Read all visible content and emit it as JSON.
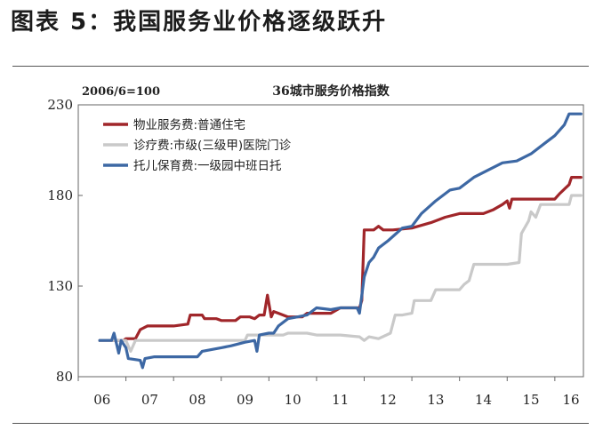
{
  "figure": {
    "title": "图表 5：我国服务业价格逐级跃升"
  },
  "chart_data": {
    "type": "line",
    "title": "36城市服务价格指数",
    "base_note": "2006/6=100",
    "xlabel": "",
    "ylabel": "",
    "xlim": [
      2006,
      2016.6
    ],
    "ylim": [
      80,
      230
    ],
    "y_ticks": [
      80,
      130,
      180,
      230
    ],
    "x_ticks": [
      {
        "label": "06",
        "value": 2006
      },
      {
        "label": "07",
        "value": 2007
      },
      {
        "label": "08",
        "value": 2008
      },
      {
        "label": "09",
        "value": 2009
      },
      {
        "label": "10",
        "value": 2010
      },
      {
        "label": "11",
        "value": 2011
      },
      {
        "label": "12",
        "value": 2012
      },
      {
        "label": "13",
        "value": 2013
      },
      {
        "label": "14",
        "value": 2014
      },
      {
        "label": "15",
        "value": 2015
      },
      {
        "label": "16",
        "value": 2016
      }
    ],
    "grid": false,
    "legend_position": "top-left",
    "series": [
      {
        "name": "物业服务费:普通住宅",
        "color": "#a0262a",
        "points": [
          [
            2006.45,
            100
          ],
          [
            2006.95,
            100
          ],
          [
            2007.0,
            101
          ],
          [
            2007.2,
            101
          ],
          [
            2007.3,
            106
          ],
          [
            2007.45,
            108
          ],
          [
            2007.6,
            108
          ],
          [
            2008.0,
            108
          ],
          [
            2008.3,
            109
          ],
          [
            2008.35,
            114
          ],
          [
            2008.6,
            114
          ],
          [
            2008.65,
            112
          ],
          [
            2008.9,
            112
          ],
          [
            2009.0,
            111
          ],
          [
            2009.3,
            111
          ],
          [
            2009.4,
            113
          ],
          [
            2009.6,
            113
          ],
          [
            2009.7,
            112
          ],
          [
            2009.8,
            114
          ],
          [
            2009.9,
            114
          ],
          [
            2009.97,
            125
          ],
          [
            2010.05,
            113
          ],
          [
            2010.1,
            116
          ],
          [
            2010.2,
            115
          ],
          [
            2010.4,
            113
          ],
          [
            2010.7,
            113
          ],
          [
            2010.8,
            115
          ],
          [
            2011.3,
            115
          ],
          [
            2011.5,
            118
          ],
          [
            2011.9,
            118
          ],
          [
            2011.95,
            122
          ],
          [
            2012.0,
            161
          ],
          [
            2012.2,
            161
          ],
          [
            2012.3,
            163
          ],
          [
            2012.4,
            161
          ],
          [
            2012.6,
            161
          ],
          [
            2013.0,
            162
          ],
          [
            2013.4,
            165
          ],
          [
            2013.7,
            168
          ],
          [
            2014.0,
            170
          ],
          [
            2014.5,
            170
          ],
          [
            2014.7,
            172
          ],
          [
            2014.9,
            175
          ],
          [
            2015.0,
            177
          ],
          [
            2015.05,
            173
          ],
          [
            2015.1,
            178
          ],
          [
            2015.5,
            178
          ],
          [
            2016.0,
            178
          ],
          [
            2016.1,
            181
          ],
          [
            2016.3,
            186
          ],
          [
            2016.35,
            190
          ],
          [
            2016.55,
            190
          ]
        ]
      },
      {
        "name": "诊疗费:市级(三级甲)医院门诊",
        "color": "#c9c9c9",
        "points": [
          [
            2006.45,
            100
          ],
          [
            2007.0,
            100
          ],
          [
            2007.1,
            94
          ],
          [
            2007.2,
            100
          ],
          [
            2008.0,
            100
          ],
          [
            2009.0,
            100
          ],
          [
            2009.5,
            100
          ],
          [
            2009.55,
            103
          ],
          [
            2010.0,
            103
          ],
          [
            2010.3,
            103
          ],
          [
            2010.4,
            104
          ],
          [
            2010.8,
            104
          ],
          [
            2011.0,
            103
          ],
          [
            2011.5,
            103
          ],
          [
            2011.9,
            102
          ],
          [
            2012.0,
            100
          ],
          [
            2012.1,
            102
          ],
          [
            2012.3,
            101
          ],
          [
            2012.55,
            104
          ],
          [
            2012.65,
            114
          ],
          [
            2012.8,
            114
          ],
          [
            2013.0,
            115
          ],
          [
            2013.05,
            122
          ],
          [
            2013.4,
            122
          ],
          [
            2013.5,
            128
          ],
          [
            2014.0,
            128
          ],
          [
            2014.1,
            131
          ],
          [
            2014.2,
            133
          ],
          [
            2014.3,
            142
          ],
          [
            2015.0,
            142
          ],
          [
            2015.25,
            143
          ],
          [
            2015.3,
            159
          ],
          [
            2015.45,
            166
          ],
          [
            2015.5,
            171
          ],
          [
            2015.6,
            168
          ],
          [
            2015.7,
            175
          ],
          [
            2016.0,
            175
          ],
          [
            2016.3,
            175
          ],
          [
            2016.35,
            180
          ],
          [
            2016.55,
            180
          ]
        ]
      },
      {
        "name": "托儿保育费:一级园中班日托",
        "color": "#3d68a4",
        "points": [
          [
            2006.45,
            100
          ],
          [
            2006.7,
            100
          ],
          [
            2006.75,
            104
          ],
          [
            2006.85,
            93
          ],
          [
            2006.9,
            100
          ],
          [
            2007.0,
            96
          ],
          [
            2007.05,
            90
          ],
          [
            2007.3,
            89
          ],
          [
            2007.35,
            85
          ],
          [
            2007.4,
            90
          ],
          [
            2007.6,
            91
          ],
          [
            2008.0,
            91
          ],
          [
            2008.5,
            91
          ],
          [
            2008.6,
            94
          ],
          [
            2008.8,
            95
          ],
          [
            2009.0,
            96
          ],
          [
            2009.2,
            97
          ],
          [
            2009.5,
            99
          ],
          [
            2009.7,
            100
          ],
          [
            2009.75,
            94
          ],
          [
            2009.8,
            103
          ],
          [
            2010.0,
            104
          ],
          [
            2010.1,
            104
          ],
          [
            2010.2,
            108
          ],
          [
            2010.4,
            112
          ],
          [
            2010.6,
            113
          ],
          [
            2010.8,
            114
          ],
          [
            2011.0,
            118
          ],
          [
            2011.3,
            117
          ],
          [
            2011.5,
            118
          ],
          [
            2011.85,
            118
          ],
          [
            2011.9,
            115
          ],
          [
            2012.0,
            135
          ],
          [
            2012.1,
            143
          ],
          [
            2012.2,
            146
          ],
          [
            2012.3,
            151
          ],
          [
            2012.5,
            155
          ],
          [
            2012.8,
            162
          ],
          [
            2013.0,
            163
          ],
          [
            2013.2,
            170
          ],
          [
            2013.5,
            177
          ],
          [
            2013.8,
            183
          ],
          [
            2014.0,
            184
          ],
          [
            2014.3,
            190
          ],
          [
            2014.6,
            194
          ],
          [
            2014.9,
            198
          ],
          [
            2015.2,
            199
          ],
          [
            2015.5,
            203
          ],
          [
            2015.8,
            209
          ],
          [
            2016.0,
            213
          ],
          [
            2016.2,
            219
          ],
          [
            2016.3,
            225
          ],
          [
            2016.55,
            225
          ]
        ]
      }
    ]
  }
}
